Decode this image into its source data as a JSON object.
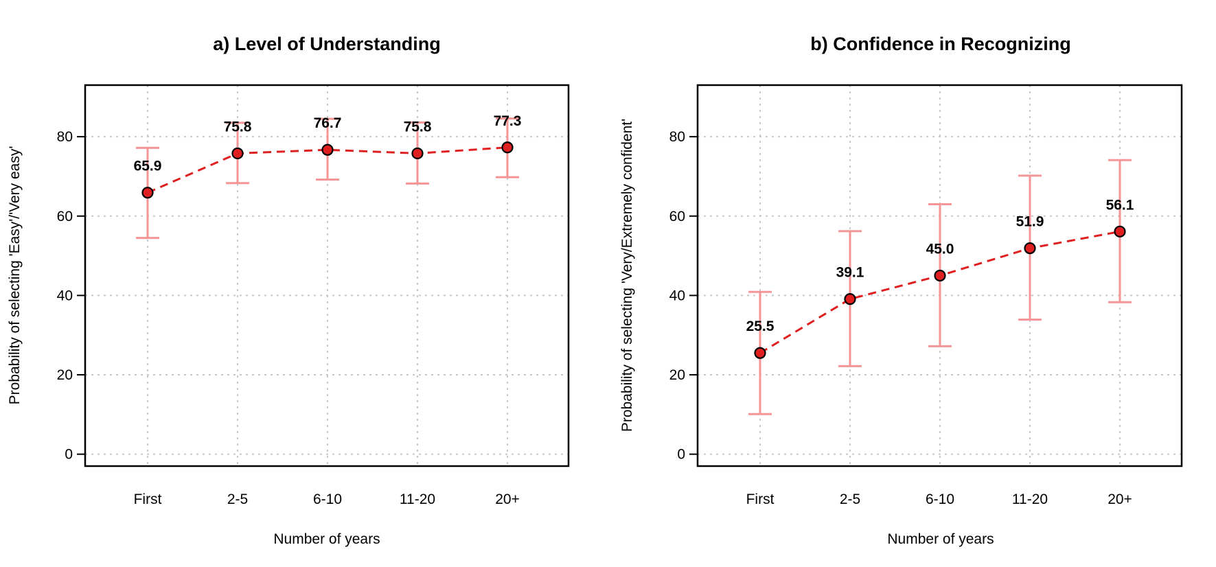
{
  "chart_data": [
    {
      "type": "line",
      "title": "a) Level of Understanding",
      "xlabel": "Number of years",
      "ylabel": "Probability of selecting 'Easy'/'Very easy'",
      "categories": [
        "First",
        "2-5",
        "6-10",
        "11-20",
        "20+"
      ],
      "values": [
        65.9,
        75.8,
        76.7,
        75.8,
        77.3
      ],
      "value_labels": [
        "65.9",
        "75.8",
        "76.7",
        "75.8",
        "77.3"
      ],
      "ci_lower": [
        54.5,
        68.3,
        69.2,
        68.2,
        69.8
      ],
      "ci_upper": [
        77.2,
        83.5,
        84.5,
        83.6,
        84.6
      ],
      "ylim": [
        -3,
        93
      ],
      "yticks": [
        0,
        20,
        40,
        60,
        80
      ],
      "ytick_labels": [
        "0",
        "20",
        "40",
        "60",
        "80"
      ],
      "grid": true,
      "colors": {
        "line": "#e02020",
        "marker_fill": "#e02020",
        "marker_edge": "#000000",
        "error_bar": "#f59595",
        "grid": "#c8c8c8"
      }
    },
    {
      "type": "line",
      "title": "b) Confidence in Recognizing",
      "xlabel": "Number of years",
      "ylabel": "Probability of selecting 'Very/Extremely confident'",
      "categories": [
        "First",
        "2-5",
        "6-10",
        "11-20",
        "20+"
      ],
      "values": [
        25.5,
        39.1,
        45.0,
        51.9,
        56.1
      ],
      "value_labels": [
        "25.5",
        "39.1",
        "45.0",
        "51.9",
        "56.1"
      ],
      "ci_lower": [
        10.1,
        22.2,
        27.2,
        33.9,
        38.3
      ],
      "ci_upper": [
        40.9,
        56.2,
        63.0,
        70.2,
        74.1
      ],
      "ylim": [
        -3,
        93
      ],
      "yticks": [
        0,
        20,
        40,
        60,
        80
      ],
      "ytick_labels": [
        "0",
        "20",
        "40",
        "60",
        "80"
      ],
      "grid": true,
      "colors": {
        "line": "#e02020",
        "marker_fill": "#e02020",
        "marker_edge": "#000000",
        "error_bar": "#f59595",
        "grid": "#c8c8c8"
      }
    }
  ]
}
